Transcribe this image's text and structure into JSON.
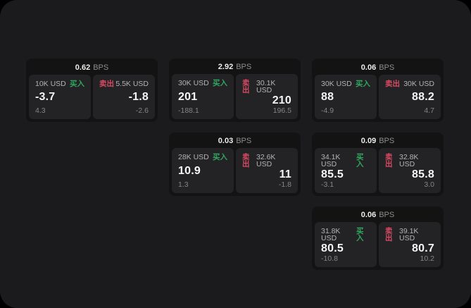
{
  "colors": {
    "buy_green": "#31a65e",
    "sell_red": "#d84a62",
    "panel_bg": "#232326",
    "card_bg": "#131314",
    "screen_bg": "#1b1b1d"
  },
  "labels": {
    "bps_unit": "BPS",
    "buy_tag": "买入",
    "sell_tag": "卖出"
  },
  "cards": [
    {
      "bps": "0.62",
      "buy": {
        "amount": "10K USD",
        "value": "-3.7",
        "sub": "4.3"
      },
      "sell": {
        "amount": "5.5K USD",
        "value": "-1.8",
        "sub": "-2.6"
      }
    },
    {
      "bps": "2.92",
      "buy": {
        "amount": "30K USD",
        "value": "201",
        "sub": "-188.1"
      },
      "sell": {
        "amount": "30.1K USD",
        "value": "210",
        "sub": "196.5"
      }
    },
    {
      "bps": "0.06",
      "buy": {
        "amount": "30K USD",
        "value": "88",
        "sub": "-4.9"
      },
      "sell": {
        "amount": "30K USD",
        "value": "88.2",
        "sub": "4.7"
      }
    },
    {
      "bps": "0.03",
      "buy": {
        "amount": "28K USD",
        "value": "10.9",
        "sub": "1.3"
      },
      "sell": {
        "amount": "32.6K USD",
        "value": "11",
        "sub": "-1.8"
      }
    },
    {
      "bps": "0.09",
      "buy": {
        "amount": "34.1K USD",
        "value": "85.5",
        "sub": "-3.1"
      },
      "sell": {
        "amount": "32.8K USD",
        "value": "85.8",
        "sub": "3.0"
      }
    },
    {
      "bps": "0.06",
      "buy": {
        "amount": "31.8K USD",
        "value": "80.5",
        "sub": "-10.8"
      },
      "sell": {
        "amount": "39.1K USD",
        "value": "80.7",
        "sub": "10.2"
      }
    }
  ]
}
